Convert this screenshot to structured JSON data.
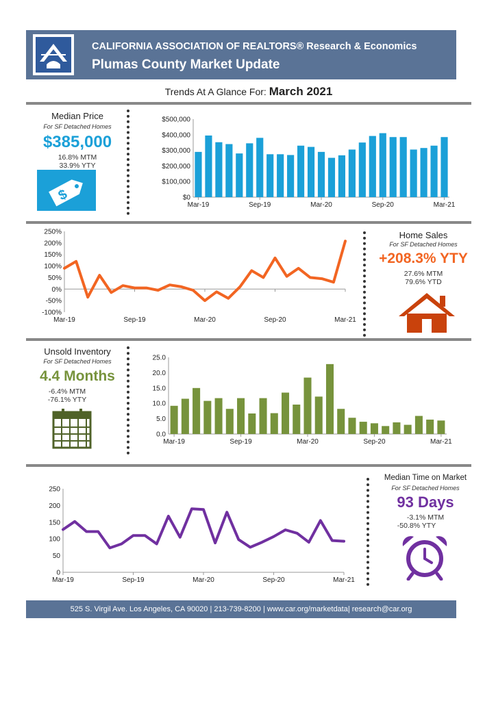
{
  "header": {
    "line1": "CALIFORNIA ASSOCIATION OF REALTORS® Research & Economics",
    "line2": "Plumas County Market Update"
  },
  "trends": {
    "prefix": "Trends At A Glance For:",
    "month": "March 2021"
  },
  "median_price": {
    "title": "Median Price",
    "subtitle": "For SF Detached Homes",
    "value": "$385,000",
    "mtm": "16.8% MTM",
    "ytd": "33.9% YTY",
    "color": "#1ba0d8",
    "icon": "price-tag-icon"
  },
  "home_sales": {
    "title": "Home Sales",
    "subtitle": "For SF Detached Homes",
    "value": "+208.3% YTY",
    "mtm": "27.6% MTM",
    "ytd": "79.6% YTD",
    "color": "#f26522",
    "icon": "house-icon"
  },
  "inventory": {
    "title": "Unsold Inventory",
    "subtitle": "For SF Detached Homes",
    "value": "4.4 Months",
    "mtm": "-6.4% MTM",
    "ytd": "-76.1% YTY",
    "color": "#77933c",
    "icon": "calendar-icon"
  },
  "time_on_market": {
    "title": "Median Time on Market",
    "subtitle": "For SF Detached Homes",
    "value": "93 Days",
    "mtm": "-3.1% MTM",
    "ytd": "-50.8% YTY",
    "color": "#7030a0",
    "icon": "alarm-clock-icon"
  },
  "footer": {
    "text": "525 S. Virgil Ave. Los Angeles, CA 90020 | 213-739-8200 | www.car.org/marketdata| research@car.org"
  },
  "chart_data": [
    {
      "id": "median-price",
      "type": "bar",
      "color": "#1ba0d8",
      "x_tick_labels": [
        "Mar-19",
        "Sep-19",
        "Mar-20",
        "Sep-20",
        "Mar-21"
      ],
      "y_tick_labels": [
        "$0",
        "$100,000",
        "$200,000",
        "$300,000",
        "$400,000",
        "$500,000"
      ],
      "ylim": [
        0,
        500000
      ],
      "values": [
        290000,
        395000,
        352000,
        340000,
        280000,
        345000,
        380000,
        275000,
        275000,
        270000,
        330000,
        322000,
        290000,
        252000,
        268000,
        305000,
        350000,
        392000,
        410000,
        385000,
        385000,
        305000,
        315000,
        330000,
        385000
      ]
    },
    {
      "id": "home-sales",
      "type": "line",
      "color": "#f26522",
      "x_tick_labels": [
        "Mar-19",
        "Sep-19",
        "Mar-20",
        "Sep-20",
        "Mar-21"
      ],
      "y_tick_labels": [
        "-100%",
        "-50%",
        "0%",
        "50%",
        "100%",
        "150%",
        "200%",
        "250%"
      ],
      "ylim": [
        -100,
        250
      ],
      "values": [
        90,
        120,
        -35,
        60,
        -15,
        15,
        5,
        5,
        -5,
        18,
        10,
        -5,
        -50,
        -12,
        -40,
        10,
        80,
        50,
        135,
        55,
        90,
        50,
        45,
        30,
        208
      ]
    },
    {
      "id": "inventory",
      "type": "bar",
      "color": "#77933c",
      "x_tick_labels": [
        "Mar-19",
        "Sep-19",
        "Mar-20",
        "Sep-20",
        "Mar-21"
      ],
      "y_tick_labels": [
        "0.0",
        "5.0",
        "10.0",
        "15.0",
        "20.0",
        "25.0"
      ],
      "ylim": [
        0,
        25
      ],
      "values": [
        9.2,
        11.5,
        15.0,
        10.8,
        11.7,
        8.2,
        11.7,
        6.7,
        11.7,
        6.8,
        13.5,
        9.6,
        18.4,
        12.2,
        22.8,
        8.2,
        5.3,
        4.0,
        3.5,
        2.6,
        3.8,
        3.0,
        5.9,
        4.7,
        4.4
      ]
    },
    {
      "id": "time-on-market",
      "type": "line",
      "color": "#7030a0",
      "x_tick_labels": [
        "Mar-19",
        "Sep-19",
        "Mar-20",
        "Sep-20",
        "Mar-21"
      ],
      "y_tick_labels": [
        "0",
        "50",
        "100",
        "150",
        "200",
        "250"
      ],
      "ylim": [
        0,
        250
      ],
      "values": [
        128,
        152,
        122,
        122,
        73,
        85,
        110,
        110,
        85,
        168,
        105,
        190,
        188,
        88,
        180,
        98,
        75,
        90,
        107,
        127,
        117,
        90,
        155,
        95,
        93
      ]
    }
  ]
}
